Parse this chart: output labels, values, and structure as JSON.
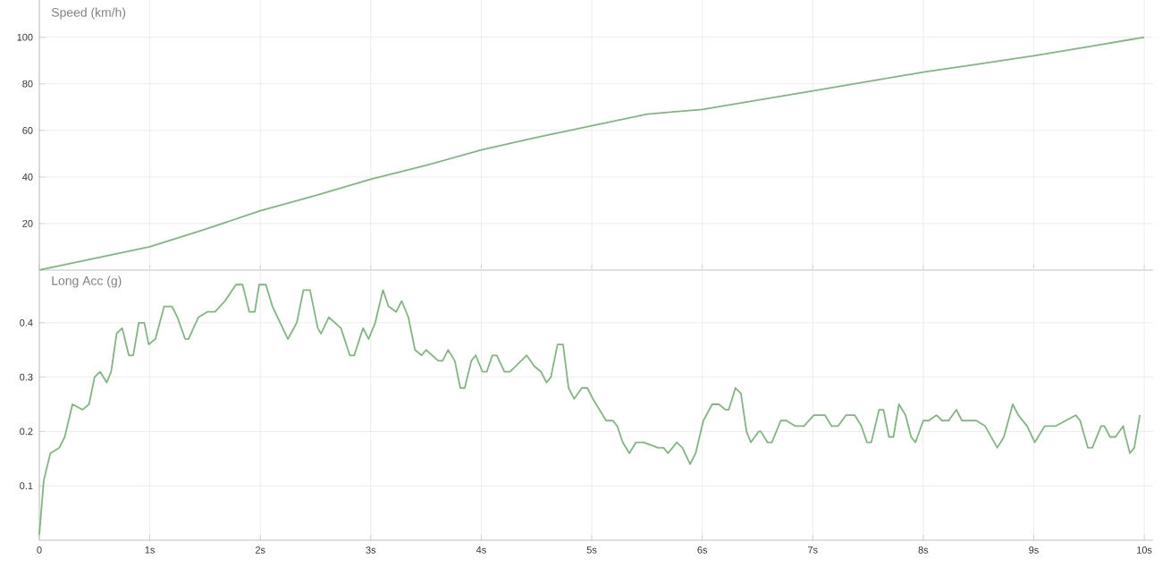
{
  "chart_data": [
    {
      "type": "line",
      "title": "Speed (km/h)",
      "tick_labels": "y",
      "grid": true,
      "xlim": [
        0,
        10.08
      ],
      "ylim": [
        0,
        116
      ],
      "xticks": [
        0,
        1,
        2,
        3,
        4,
        5,
        6,
        7,
        8,
        9,
        10
      ],
      "yticks": [
        20,
        40,
        60,
        80,
        100
      ],
      "series": [
        {
          "color": "#7fb87f",
          "x": [
            0,
            0.5,
            1,
            1.5,
            2,
            2.5,
            3,
            3.5,
            4,
            4.5,
            5,
            5.5,
            6,
            6.5,
            7,
            7.5,
            8,
            8.5,
            9,
            9.5,
            10
          ],
          "values": [
            0,
            5,
            10,
            17.5,
            25.5,
            32,
            39,
            45,
            51.6,
            57,
            62,
            67,
            69,
            73,
            77,
            81,
            85,
            88.5,
            92,
            96,
            100
          ]
        }
      ]
    },
    {
      "type": "line",
      "title": "Long Acc (g)",
      "grid": true,
      "xlim": [
        0,
        10.08
      ],
      "ylim": [
        0,
        0.5
      ],
      "xticks": [
        0,
        {
          "value": 1,
          "label": "1s"
        },
        {
          "value": 2,
          "label": "2s"
        },
        {
          "value": 3,
          "label": "3s"
        },
        {
          "value": 4,
          "label": "4s"
        },
        {
          "value": 5,
          "label": "5s"
        },
        {
          "value": 6,
          "label": "6s"
        },
        {
          "value": 7,
          "label": "7s"
        },
        {
          "value": 8,
          "label": "8s"
        },
        {
          "value": 9,
          "label": "9s"
        },
        {
          "value": 10,
          "label": "10s"
        }
      ],
      "yticks": [
        0.1,
        0.2,
        0.3,
        0.4
      ],
      "series": [
        {
          "color": "#7fb87f",
          "x": [
            0,
            0.04,
            0.1,
            0.18,
            0.23,
            0.3,
            0.39,
            0.45,
            0.5,
            0.55,
            0.61,
            0.65,
            0.7,
            0.75,
            0.81,
            0.85,
            0.9,
            0.95,
            0.99,
            1.05,
            1.13,
            1.2,
            1.25,
            1.32,
            1.35,
            1.44,
            1.52,
            1.59,
            1.68,
            1.78,
            1.84,
            1.9,
            1.95,
            1.99,
            2.05,
            2.11,
            2.25,
            2.33,
            2.39,
            2.45,
            2.52,
            2.55,
            2.62,
            2.73,
            2.81,
            2.85,
            2.93,
            2.98,
            3.04,
            3.11,
            3.16,
            3.23,
            3.28,
            3.34,
            3.4,
            3.46,
            3.5,
            3.61,
            3.65,
            3.7,
            3.76,
            3.81,
            3.85,
            3.91,
            3.95,
            4.01,
            4.05,
            4.1,
            4.14,
            4.21,
            4.26,
            4.41,
            4.48,
            4.54,
            4.59,
            4.63,
            4.69,
            4.74,
            4.79,
            4.84,
            4.91,
            4.96,
            5.01,
            5.04,
            5.13,
            5.19,
            5.23,
            5.28,
            5.34,
            5.4,
            5.47,
            5.6,
            5.65,
            5.69,
            5.77,
            5.82,
            5.89,
            5.94,
            6.01,
            6.09,
            6.15,
            6.21,
            6.24,
            6.3,
            6.35,
            6.4,
            6.44,
            6.51,
            6.53,
            6.59,
            6.63,
            6.71,
            6.76,
            6.84,
            6.92,
            7.01,
            7.11,
            7.17,
            7.23,
            7.3,
            7.38,
            7.44,
            7.49,
            7.53,
            7.6,
            7.64,
            7.69,
            7.73,
            7.78,
            7.84,
            7.89,
            7.93,
            8.0,
            8.05,
            8.12,
            8.17,
            8.23,
            8.3,
            8.35,
            8.48,
            8.56,
            8.67,
            8.73,
            8.81,
            8.86,
            8.94,
            9.01,
            9.1,
            9.2,
            9.29,
            9.38,
            9.42,
            9.49,
            9.53,
            9.61,
            9.64,
            9.69,
            9.74,
            9.81,
            9.82,
            9.87,
            9.91,
            9.96
          ],
          "values": [
            0.01,
            0.11,
            0.16,
            0.17,
            0.19,
            0.25,
            0.24,
            0.25,
            0.3,
            0.31,
            0.29,
            0.31,
            0.38,
            0.39,
            0.34,
            0.34,
            0.4,
            0.4,
            0.36,
            0.37,
            0.43,
            0.43,
            0.41,
            0.37,
            0.37,
            0.41,
            0.42,
            0.42,
            0.44,
            0.47,
            0.47,
            0.42,
            0.42,
            0.47,
            0.47,
            0.43,
            0.37,
            0.4,
            0.46,
            0.46,
            0.39,
            0.38,
            0.41,
            0.39,
            0.34,
            0.34,
            0.39,
            0.37,
            0.4,
            0.46,
            0.43,
            0.42,
            0.44,
            0.41,
            0.35,
            0.34,
            0.35,
            0.33,
            0.33,
            0.35,
            0.33,
            0.28,
            0.28,
            0.33,
            0.34,
            0.31,
            0.31,
            0.34,
            0.34,
            0.31,
            0.31,
            0.34,
            0.32,
            0.31,
            0.29,
            0.3,
            0.36,
            0.36,
            0.28,
            0.26,
            0.28,
            0.28,
            0.26,
            0.25,
            0.22,
            0.22,
            0.21,
            0.18,
            0.16,
            0.18,
            0.18,
            0.17,
            0.17,
            0.16,
            0.18,
            0.17,
            0.14,
            0.16,
            0.22,
            0.25,
            0.25,
            0.24,
            0.24,
            0.28,
            0.27,
            0.2,
            0.18,
            0.2,
            0.2,
            0.18,
            0.18,
            0.22,
            0.22,
            0.21,
            0.21,
            0.23,
            0.23,
            0.21,
            0.21,
            0.23,
            0.23,
            0.21,
            0.18,
            0.18,
            0.24,
            0.24,
            0.19,
            0.19,
            0.25,
            0.23,
            0.19,
            0.18,
            0.22,
            0.22,
            0.23,
            0.22,
            0.22,
            0.24,
            0.22,
            0.22,
            0.21,
            0.17,
            0.19,
            0.25,
            0.23,
            0.21,
            0.18,
            0.21,
            0.21,
            0.22,
            0.23,
            0.22,
            0.17,
            0.17,
            0.21,
            0.21,
            0.19,
            0.19,
            0.21,
            0.2,
            0.16,
            0.17,
            0.23
          ]
        }
      ]
    }
  ]
}
